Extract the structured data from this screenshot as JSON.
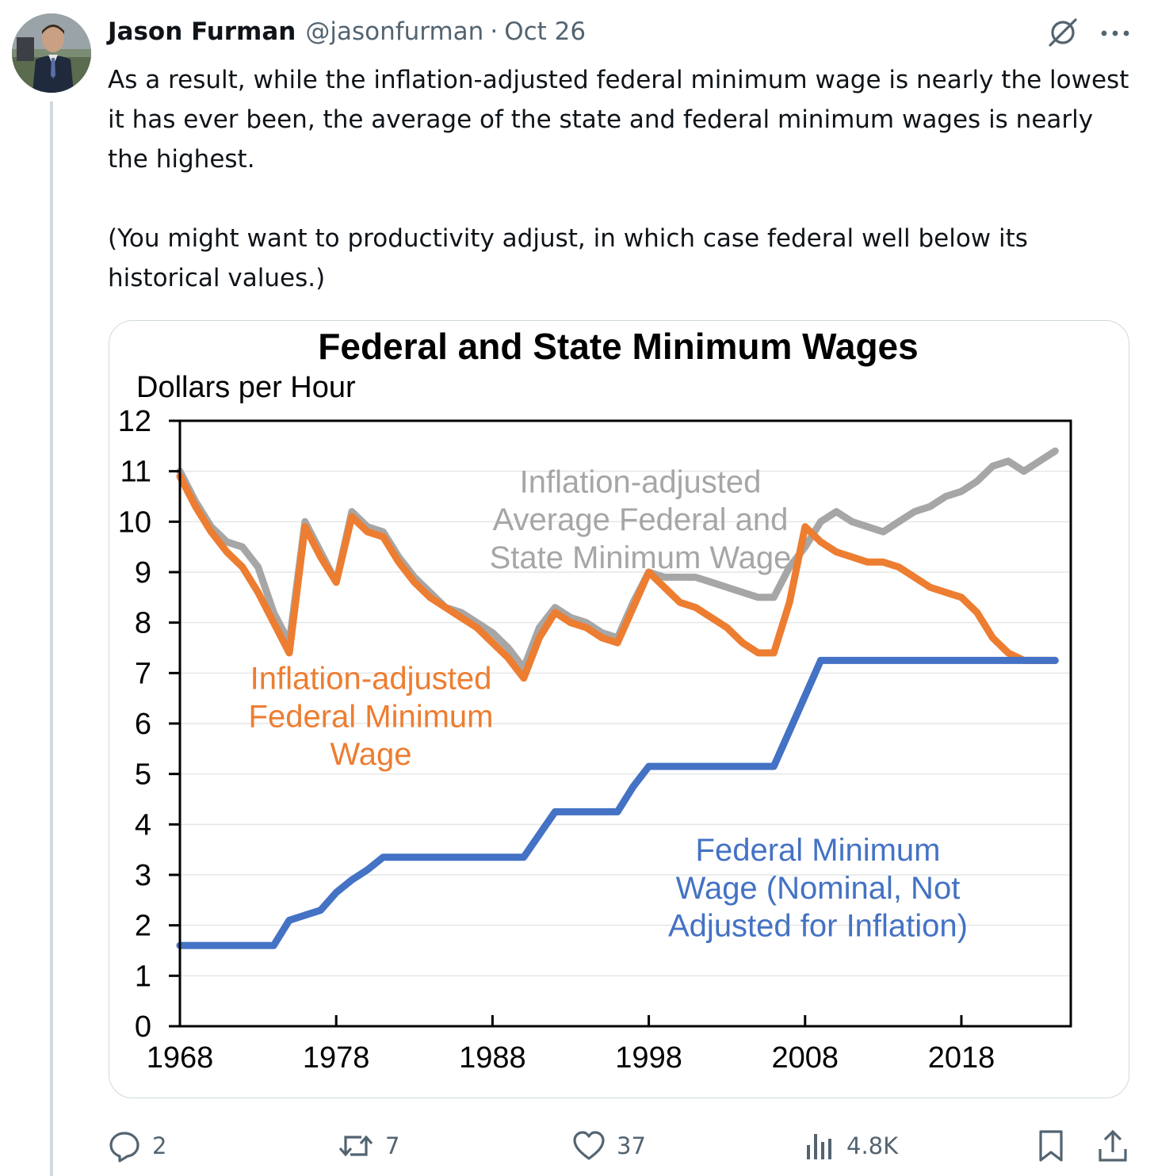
{
  "post": {
    "author_name": "Jason Furman",
    "handle": "@jasonfurman",
    "separator": "·",
    "date": "Oct 26",
    "text_paragraph_1": "As a result, while the inflation-adjusted federal minimum wage is nearly the lowest it has ever been, the average of the state and federal minimum wages is nearly the highest.",
    "text_paragraph_2": "(You might want to productivity adjust, in which case federal well below its historical values.)"
  },
  "actions": {
    "replies": "2",
    "reposts": "7",
    "likes": "37",
    "views": "4.8K"
  },
  "icons": {
    "top_right": [
      "grok-icon",
      "more-icon"
    ],
    "action_bar": [
      "reply-icon",
      "repost-icon",
      "like-icon",
      "views-icon",
      "bookmark-icon",
      "share-icon"
    ]
  },
  "chart_data": {
    "type": "line",
    "title": "Federal and State Minimum Wages",
    "ylabel": "Dollars per Hour",
    "xlim": [
      1968,
      2025
    ],
    "ylim": [
      0,
      12
    ],
    "x_ticks": [
      "1968",
      "1978",
      "1988",
      "1998",
      "2008",
      "2018"
    ],
    "y_ticks": [
      "0",
      "1",
      "2",
      "3",
      "4",
      "5",
      "6",
      "7",
      "8",
      "9",
      "10",
      "11",
      "12"
    ],
    "grid": true,
    "series": [
      {
        "name": "Inflation-adjusted Average Federal and State Minimum Wage",
        "label_lines": [
          "Inflation-adjusted",
          "Average Federal and",
          "State Minimum Wage"
        ],
        "color": "#a6a6a6",
        "x": [
          1968,
          1969,
          1970,
          1971,
          1972,
          1973,
          1974,
          1975,
          1976,
          1977,
          1978,
          1979,
          1980,
          1981,
          1982,
          1983,
          1984,
          1985,
          1986,
          1987,
          1988,
          1989,
          1990,
          1991,
          1992,
          1993,
          1994,
          1995,
          1996,
          1997,
          1998,
          1999,
          2000,
          2001,
          2002,
          2003,
          2004,
          2005,
          2006,
          2007,
          2008,
          2009,
          2010,
          2011,
          2012,
          2013,
          2014,
          2015,
          2016,
          2017,
          2018,
          2019,
          2020,
          2021,
          2022,
          2023,
          2024
        ],
        "y": [
          11.0,
          10.4,
          9.9,
          9.6,
          9.5,
          9.1,
          8.2,
          7.6,
          10.0,
          9.4,
          8.8,
          10.2,
          9.9,
          9.8,
          9.3,
          8.9,
          8.6,
          8.3,
          8.2,
          8.0,
          7.8,
          7.5,
          7.1,
          7.9,
          8.3,
          8.1,
          8.0,
          7.8,
          7.7,
          8.4,
          9.0,
          8.9,
          8.9,
          8.9,
          8.8,
          8.7,
          8.6,
          8.5,
          8.5,
          9.1,
          9.5,
          10.0,
          10.2,
          10.0,
          9.9,
          9.8,
          10.0,
          10.2,
          10.3,
          10.5,
          10.6,
          10.8,
          11.1,
          11.2,
          11.0,
          11.2,
          11.4
        ]
      },
      {
        "name": "Inflation-adjusted Federal Minimum Wage",
        "label_lines": [
          "Inflation-adjusted",
          "Federal Minimum",
          "Wage"
        ],
        "color": "#ed7d31",
        "x": [
          1968,
          1969,
          1970,
          1971,
          1972,
          1973,
          1974,
          1975,
          1976,
          1977,
          1978,
          1979,
          1980,
          1981,
          1982,
          1983,
          1984,
          1985,
          1986,
          1987,
          1988,
          1989,
          1990,
          1991,
          1992,
          1993,
          1994,
          1995,
          1996,
          1997,
          1998,
          1999,
          2000,
          2001,
          2002,
          2003,
          2004,
          2005,
          2006,
          2007,
          2008,
          2009,
          2010,
          2011,
          2012,
          2013,
          2014,
          2015,
          2016,
          2017,
          2018,
          2019,
          2020,
          2021,
          2022,
          2023,
          2024
        ],
        "y": [
          10.9,
          10.3,
          9.8,
          9.4,
          9.1,
          8.6,
          8.0,
          7.4,
          9.9,
          9.3,
          8.8,
          10.1,
          9.8,
          9.7,
          9.2,
          8.8,
          8.5,
          8.3,
          8.1,
          7.9,
          7.6,
          7.3,
          6.9,
          7.7,
          8.2,
          8.0,
          7.9,
          7.7,
          7.6,
          8.3,
          9.0,
          8.7,
          8.4,
          8.3,
          8.1,
          7.9,
          7.6,
          7.4,
          7.4,
          8.4,
          9.9,
          9.6,
          9.4,
          9.3,
          9.2,
          9.2,
          9.1,
          8.9,
          8.7,
          8.6,
          8.5,
          8.2,
          7.7,
          7.4,
          7.25,
          7.25,
          7.25
        ]
      },
      {
        "name": "Federal Minimum Wage (Nominal, Not Adjusted for Inflation)",
        "label_lines": [
          "Federal Minimum",
          "Wage (Nominal, Not",
          "Adjusted for Inflation)"
        ],
        "color": "#4472c4",
        "x": [
          1968,
          1974,
          1975,
          1977,
          1978,
          1979,
          1980,
          1981,
          1990,
          1991,
          1992,
          1996,
          1997,
          1998,
          2006,
          2007,
          2008,
          2009,
          2024
        ],
        "y": [
          1.6,
          1.6,
          2.1,
          2.3,
          2.65,
          2.9,
          3.1,
          3.35,
          3.35,
          3.8,
          4.25,
          4.25,
          4.75,
          5.15,
          5.15,
          5.85,
          6.55,
          7.25,
          7.25
        ]
      }
    ]
  }
}
